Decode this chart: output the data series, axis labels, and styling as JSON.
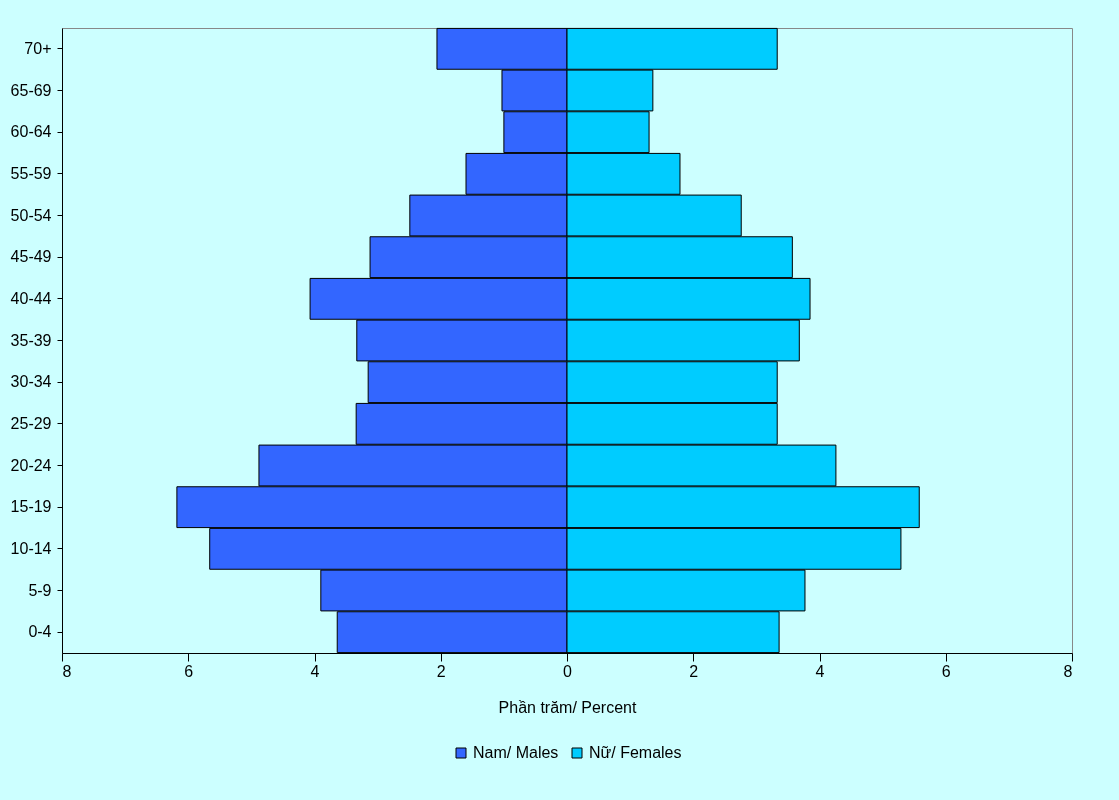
{
  "chart_data": {
    "type": "bar",
    "orientation": "horizontal",
    "xlabel": "Phần trăm/ Percent",
    "categories": [
      "70+",
      "65-69",
      "60-64",
      "55-59",
      "50-54",
      "45-49",
      "40-44",
      "35-39",
      "30-34",
      "25-29",
      "20-24",
      "15-19",
      "10-14",
      "5-9",
      "0-4"
    ],
    "series": [
      {
        "name": "Nam/ Males",
        "color": "#3366ff",
        "values": [
          -2.06,
          -1.03,
          -1.0,
          -1.6,
          -2.49,
          -3.12,
          -4.07,
          -3.33,
          -3.15,
          -3.34,
          -4.88,
          -6.18,
          -5.66,
          -3.9,
          -3.64
        ]
      },
      {
        "name": "Nữ/ Females",
        "color": "#00ccff",
        "values": [
          3.33,
          1.36,
          1.3,
          1.79,
          2.76,
          3.57,
          3.85,
          3.68,
          3.33,
          3.33,
          4.26,
          5.58,
          5.29,
          3.77,
          3.36
        ]
      }
    ],
    "xlim": [
      -8,
      8
    ],
    "xticks": [
      {
        "value": -8,
        "label": "8"
      },
      {
        "value": -6,
        "label": "6"
      },
      {
        "value": -4,
        "label": "4"
      },
      {
        "value": -2,
        "label": "2"
      },
      0,
      2,
      4,
      6,
      8
    ],
    "grid": false,
    "legend": "bottom",
    "stacked": true
  }
}
